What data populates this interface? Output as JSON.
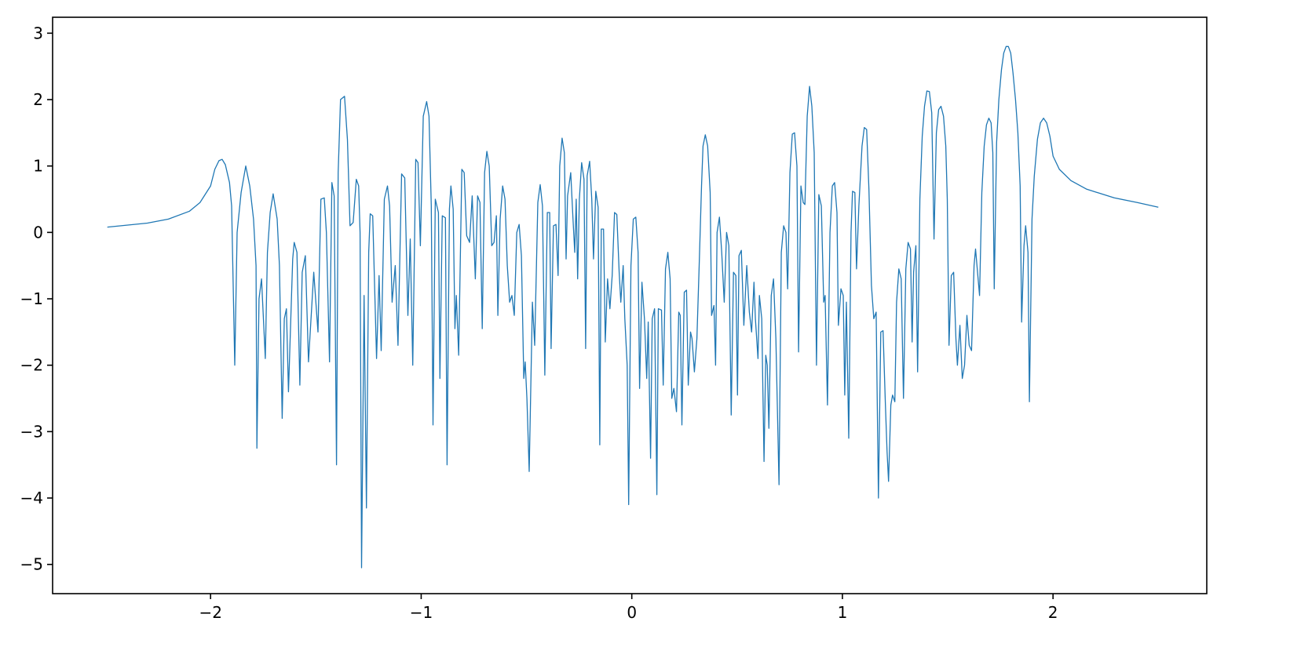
{
  "chart_data": {
    "type": "line",
    "title": "",
    "xlabel": "",
    "ylabel": "",
    "xlim": [
      -2.75,
      2.73
    ],
    "ylim": [
      -5.44,
      3.24
    ],
    "grid": false,
    "line_color": "#1f77b4",
    "x_ticks": [
      -2,
      -1,
      0,
      1,
      2
    ],
    "x_tick_labels": [
      "−2",
      "−1",
      "0",
      "1",
      "2"
    ],
    "y_ticks": [
      3,
      2,
      1,
      0,
      -1,
      -2,
      -3,
      -4,
      -5
    ],
    "y_tick_labels": [
      "3",
      "2",
      "1",
      "0",
      "−1",
      "−2",
      "−3",
      "−4",
      "−5"
    ],
    "series": [
      {
        "x": [
          -2.49,
          -2.3,
          -2.2,
          -2.1,
          -2.05,
          -2.0,
          -1.98,
          -1.96,
          -1.945,
          -1.93,
          -1.91,
          -1.9,
          -1.885,
          -1.874,
          -1.855,
          -1.833,
          -1.814,
          -1.796,
          -1.784,
          -1.78,
          -1.77,
          -1.758,
          -1.74,
          -1.73,
          -1.717,
          -1.703,
          -1.684,
          -1.673,
          -1.66,
          -1.65,
          -1.64,
          -1.63,
          -1.61,
          -1.603,
          -1.59,
          -1.576,
          -1.565,
          -1.55,
          -1.535,
          -1.51,
          -1.49,
          -1.476,
          -1.46,
          -1.45,
          -1.435,
          -1.424,
          -1.413,
          -1.402,
          -1.394,
          -1.383,
          -1.364,
          -1.35,
          -1.338,
          -1.323,
          -1.308,
          -1.297,
          -1.29,
          -1.283,
          -1.271,
          -1.26,
          -1.249,
          -1.242,
          -1.23,
          -1.212,
          -1.2,
          -1.19,
          -1.175,
          -1.16,
          -1.15,
          -1.138,
          -1.123,
          -1.11,
          -1.093,
          -1.078,
          -1.063,
          -1.052,
          -1.04,
          -1.026,
          -1.015,
          -1.004,
          -0.99,
          -0.974,
          -0.963,
          -0.952,
          -0.944,
          -0.933,
          -0.918,
          -0.911,
          -0.9,
          -0.885,
          -0.877,
          -0.866,
          -0.859,
          -0.848,
          -0.84,
          -0.833,
          -0.822,
          -0.807,
          -0.796,
          -0.784,
          -0.77,
          -0.758,
          -0.743,
          -0.732,
          -0.721,
          -0.71,
          -0.699,
          -0.688,
          -0.677,
          -0.665,
          -0.654,
          -0.643,
          -0.636,
          -0.625,
          -0.613,
          -0.602,
          -0.591,
          -0.58,
          -0.569,
          -0.558,
          -0.546,
          -0.535,
          -0.524,
          -0.513,
          -0.506,
          -0.498,
          -0.487,
          -0.472,
          -0.461,
          -0.446,
          -0.435,
          -0.424,
          -0.413,
          -0.401,
          -0.39,
          -0.383,
          -0.372,
          -0.36,
          -0.35,
          -0.342,
          -0.331,
          -0.32,
          -0.312,
          -0.305,
          -0.29,
          -0.279,
          -0.271,
          -0.264,
          -0.257,
          -0.249,
          -0.238,
          -0.227,
          -0.219,
          -0.212,
          -0.2,
          -0.19,
          -0.182,
          -0.171,
          -0.16,
          -0.152,
          -0.145,
          -0.134,
          -0.126,
          -0.115,
          -0.104,
          -0.093,
          -0.082,
          -0.071,
          -0.06,
          -0.052,
          -0.041,
          -0.033,
          -0.022,
          -0.015,
          -0.004,
          0.007,
          0.019,
          0.03,
          0.037,
          0.048,
          0.06,
          0.071,
          0.078,
          0.089,
          0.097,
          0.108,
          0.119,
          0.126,
          0.141,
          0.149,
          0.16,
          0.171,
          0.182,
          0.19,
          0.2,
          0.212,
          0.223,
          0.23,
          0.238,
          0.249,
          0.26,
          0.268,
          0.279,
          0.286,
          0.297,
          0.309,
          0.32,
          0.331,
          0.338,
          0.349,
          0.36,
          0.372,
          0.379,
          0.39,
          0.398,
          0.405,
          0.416,
          0.427,
          0.439,
          0.45,
          0.461,
          0.472,
          0.483,
          0.494,
          0.502,
          0.509,
          0.52,
          0.532,
          0.546,
          0.558,
          0.569,
          0.58,
          0.587,
          0.599,
          0.606,
          0.617,
          0.628,
          0.636,
          0.643,
          0.651,
          0.662,
          0.673,
          0.684,
          0.699,
          0.71,
          0.721,
          0.732,
          0.74,
          0.751,
          0.762,
          0.773,
          0.784,
          0.792,
          0.803,
          0.814,
          0.822,
          0.833,
          0.844,
          0.855,
          0.866,
          0.877,
          0.888,
          0.9,
          0.911,
          0.918,
          0.929,
          0.941,
          0.952,
          0.963,
          0.974,
          0.981,
          0.993,
          1.004,
          1.011,
          1.019,
          1.03,
          1.041,
          1.048,
          1.059,
          1.067,
          1.078,
          1.093,
          1.104,
          1.115,
          1.126,
          1.138,
          1.149,
          1.16,
          1.171,
          1.182,
          1.193,
          1.204,
          1.212,
          1.219,
          1.23,
          1.238,
          1.249,
          1.257,
          1.268,
          1.279,
          1.29,
          1.301,
          1.312,
          1.323,
          1.331,
          1.338,
          1.349,
          1.357,
          1.368,
          1.379,
          1.39,
          1.401,
          1.413,
          1.424,
          1.435,
          1.446,
          1.457,
          1.468,
          1.48,
          1.491,
          1.498,
          1.506,
          1.517,
          1.528,
          1.539,
          1.546,
          1.558,
          1.569,
          1.58,
          1.591,
          1.602,
          1.613,
          1.625,
          1.632,
          1.643,
          1.651,
          1.662,
          1.673,
          1.684,
          1.695,
          1.706,
          1.714,
          1.721,
          1.732,
          1.743,
          1.755,
          1.766,
          1.777,
          1.788,
          1.799,
          1.81,
          1.822,
          1.833,
          1.844,
          1.851,
          1.862,
          1.87,
          1.881,
          1.888,
          1.9,
          1.911,
          1.926,
          1.94,
          1.955,
          1.97,
          1.985,
          2.0,
          2.03,
          2.085,
          2.16,
          2.29,
          2.4,
          2.5
        ],
        "y": [
          0.08,
          0.14,
          0.2,
          0.32,
          0.45,
          0.7,
          0.95,
          1.08,
          1.1,
          1.02,
          0.75,
          0.4,
          -2.0,
          0,
          0.6,
          1.0,
          0.7,
          0.2,
          -0.5,
          -3.25,
          -1.0,
          -0.7,
          -1.9,
          -0.3,
          0.3,
          0.58,
          0.2,
          -0.5,
          -2.8,
          -1.3,
          -1.15,
          -2.4,
          -0.4,
          -0.15,
          -0.3,
          -2.3,
          -0.6,
          -0.35,
          -1.95,
          -0.6,
          -1.5,
          0.5,
          0.52,
          0.0,
          -1.95,
          0.75,
          0.55,
          -3.5,
          0.9,
          2.0,
          2.05,
          1.4,
          0.1,
          0.15,
          0.8,
          0.7,
          0.0,
          -5.05,
          -0.95,
          -4.15,
          -0.3,
          0.28,
          0.25,
          -1.9,
          -0.65,
          -1.78,
          0.5,
          0.7,
          0.4,
          -1.05,
          -0.5,
          -1.7,
          0.88,
          0.82,
          -1.25,
          -0.1,
          -2.0,
          1.1,
          1.05,
          -0.2,
          1.75,
          1.97,
          1.75,
          0.4,
          -2.9,
          0.5,
          0.3,
          -2.2,
          0.25,
          0.22,
          -3.5,
          0.35,
          0.7,
          0.35,
          -1.45,
          -0.95,
          -1.85,
          0.95,
          0.9,
          -0.05,
          -0.15,
          0.55,
          -0.7,
          0.55,
          0.45,
          -1.45,
          0.9,
          1.22,
          1.0,
          -0.2,
          -0.15,
          0.25,
          -1.25,
          0.2,
          0.7,
          0.5,
          -0.5,
          -1.05,
          -0.95,
          -1.25,
          0.0,
          0.12,
          -0.35,
          -2.2,
          -1.95,
          -2.5,
          -3.6,
          -1.05,
          -1.7,
          0.45,
          0.72,
          0.4,
          -2.15,
          0.3,
          0.3,
          -1.75,
          0.1,
          0.12,
          -0.65,
          1.0,
          1.42,
          1.2,
          -0.4,
          0.55,
          0.9,
          0.2,
          -0.3,
          0.5,
          -0.7,
          0.5,
          1.05,
          0.8,
          -1.75,
          0.85,
          1.07,
          0.5,
          -0.4,
          0.62,
          0.38,
          -3.2,
          0.05,
          0.05,
          -1.65,
          -0.7,
          -1.15,
          -0.65,
          0.3,
          0.27,
          -0.6,
          -1.05,
          -0.5,
          -1.3,
          -2.0,
          -4.1,
          -0.5,
          0.2,
          0.23,
          -0.3,
          -2.35,
          -0.75,
          -1.3,
          -2.2,
          -1.35,
          -3.4,
          -1.3,
          -1.15,
          -3.95,
          -1.15,
          -1.17,
          -2.3,
          -0.55,
          -0.3,
          -0.7,
          -2.5,
          -2.35,
          -2.7,
          -1.2,
          -1.25,
          -2.9,
          -0.9,
          -0.87,
          -2.3,
          -1.5,
          -1.6,
          -2.1,
          -1.6,
          -0.5,
          0.7,
          1.3,
          1.47,
          1.3,
          0.6,
          -1.25,
          -1.1,
          -2.0,
          0.0,
          0.23,
          -0.3,
          -1.05,
          0.0,
          -0.2,
          -2.75,
          -0.6,
          -0.65,
          -2.45,
          -0.35,
          -0.27,
          -1.4,
          -0.5,
          -1.2,
          -1.5,
          -0.75,
          -1.3,
          -1.9,
          -0.95,
          -1.3,
          -3.45,
          -1.85,
          -2.0,
          -2.95,
          -0.95,
          -0.7,
          -1.6,
          -3.8,
          -0.3,
          0.1,
          0.0,
          -0.85,
          0.9,
          1.48,
          1.5,
          1.0,
          -1.8,
          0.7,
          0.45,
          0.42,
          1.75,
          2.2,
          1.9,
          1.2,
          -2.0,
          0.57,
          0.4,
          -1.05,
          -0.95,
          -2.6,
          0.0,
          0.7,
          0.75,
          0.3,
          -1.4,
          -0.85,
          -0.95,
          -2.45,
          -1.05,
          -3.1,
          0.0,
          0.62,
          0.6,
          -0.55,
          0.4,
          1.3,
          1.58,
          1.55,
          0.65,
          -0.8,
          -1.3,
          -1.2,
          -4.0,
          -1.5,
          -1.48,
          -2.6,
          -3.3,
          -3.75,
          -2.6,
          -2.45,
          -2.55,
          -1.05,
          -0.55,
          -0.7,
          -2.5,
          -0.55,
          -0.15,
          -0.25,
          -1.65,
          -0.6,
          -0.2,
          -2.1,
          0.5,
          1.45,
          1.9,
          2.13,
          2.12,
          1.8,
          -0.1,
          1.5,
          1.85,
          1.9,
          1.75,
          1.3,
          0.5,
          -1.7,
          -0.65,
          -0.6,
          -1.6,
          -2.0,
          -1.4,
          -2.2,
          -2.0,
          -1.25,
          -1.7,
          -1.78,
          -0.5,
          -0.25,
          -0.65,
          -0.95,
          0.6,
          1.3,
          1.62,
          1.72,
          1.65,
          1.2,
          -0.85,
          1.35,
          2.0,
          2.45,
          2.7,
          2.8,
          2.8,
          2.7,
          2.4,
          2.0,
          1.5,
          0.7,
          -1.35,
          -0.2,
          0.1,
          -0.3,
          -2.55,
          0.2,
          0.85,
          1.4,
          1.65,
          1.72,
          1.65,
          1.45,
          1.15,
          0.95,
          0.78,
          0.65,
          0.52,
          0.45,
          0.38
        ]
      }
    ]
  }
}
